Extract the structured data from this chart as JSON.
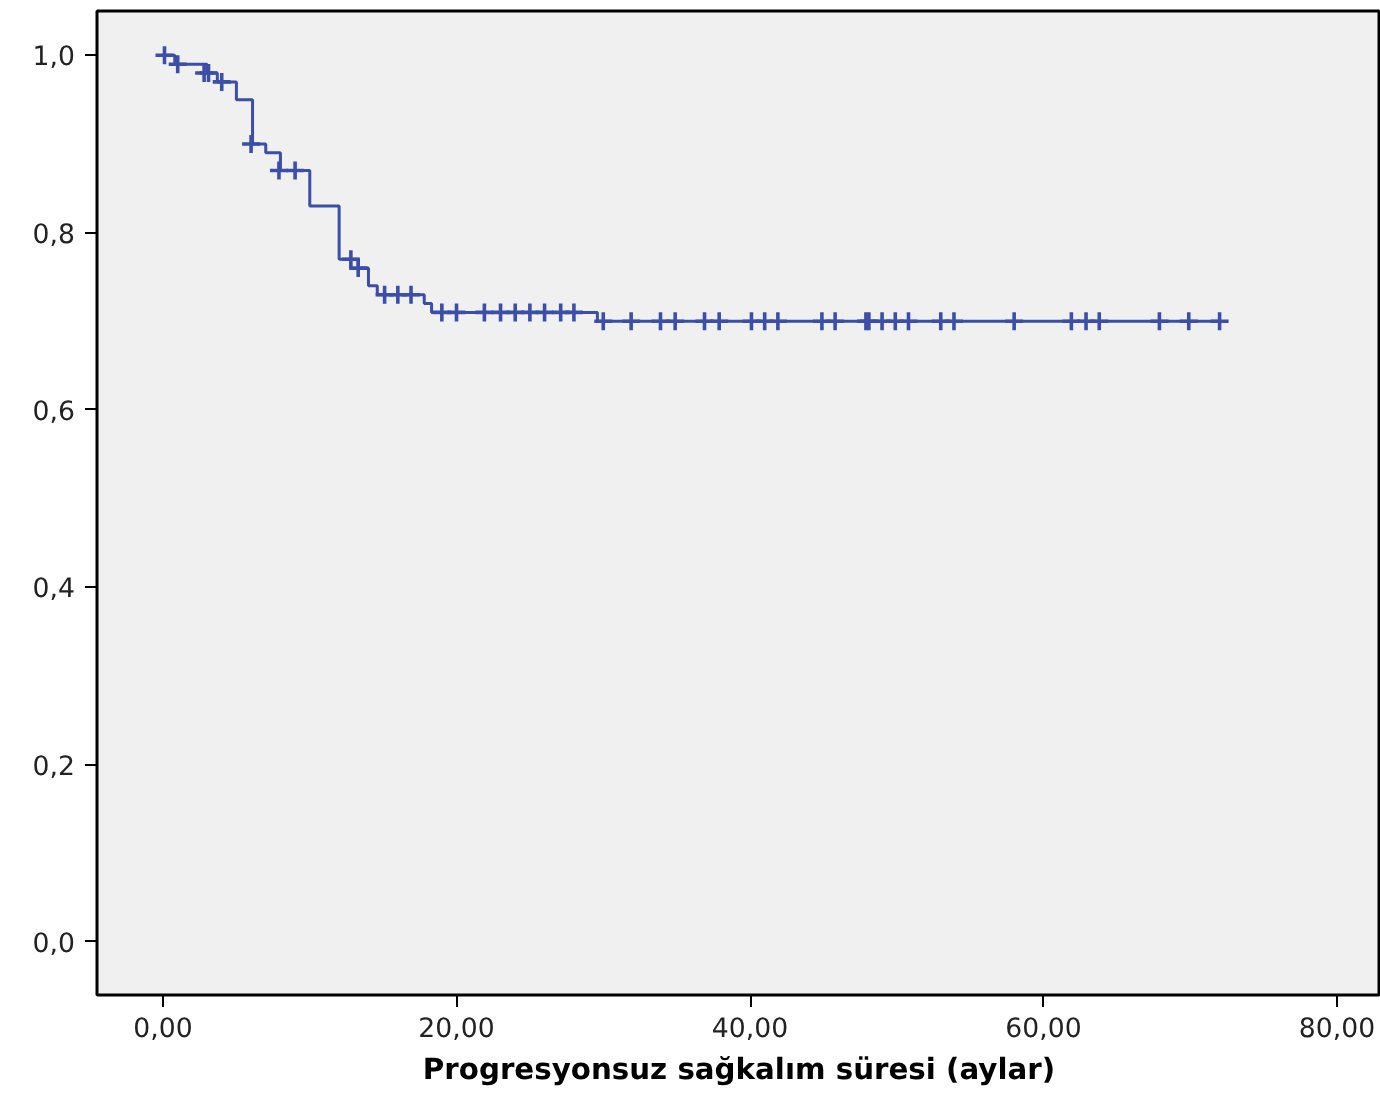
{
  "chart_data": {
    "type": "step",
    "xlabel": "Progresyonsuz sağkalım süresi (aylar)",
    "xlim": [
      -4.5,
      83
    ],
    "ylim": [
      -0.06,
      1.05
    ],
    "xticks": [
      {
        "value": 0,
        "label": "0,00"
      },
      {
        "value": 20,
        "label": "20,00"
      },
      {
        "value": 40,
        "label": "40,00"
      },
      {
        "value": 60,
        "label": "60,00"
      },
      {
        "value": 80,
        "label": "80,00"
      }
    ],
    "yticks": [
      {
        "value": 0,
        "label": "0,0"
      },
      {
        "value": 0.2,
        "label": "0,2"
      },
      {
        "value": 0.4,
        "label": "0,4"
      },
      {
        "value": 0.6,
        "label": "0,6"
      },
      {
        "value": 0.8,
        "label": "0,8"
      },
      {
        "value": 1.0,
        "label": "1,0"
      }
    ],
    "grid": false,
    "series": [
      {
        "color": "#3b4fa8",
        "x": [
          0,
          0.8,
          3.0,
          3.7,
          5,
          6.1,
          7,
          8,
          10,
          12,
          13.3,
          14,
          14.6,
          17.8,
          18.3,
          29.6,
          72
        ],
        "values": [
          1.0,
          0.99,
          0.98,
          0.97,
          0.95,
          0.9,
          0.89,
          0.87,
          0.83,
          0.77,
          0.76,
          0.74,
          0.73,
          0.72,
          0.71,
          0.7,
          0.7
        ]
      },
      {
        "type": "scatter",
        "marker": "cross",
        "color": "#3b4fa8",
        "x": [
          0.1,
          1.0,
          2.8,
          3.1,
          4.0,
          6.0,
          7.9,
          9.0,
          12.8,
          13.3,
          15.1,
          16.0,
          16.9,
          19.0,
          20.0,
          21.9,
          23.0,
          24.0,
          25.0,
          26.0,
          27.1,
          28.0,
          30.0,
          31.9,
          33.9,
          34.9,
          36.9,
          37.9,
          40.1,
          41.0,
          41.9,
          44.9,
          45.8,
          47.9,
          48.1,
          49.0,
          49.9,
          50.8,
          53.0,
          53.9,
          58.0,
          61.9,
          62.9,
          63.8,
          67.9,
          69.9,
          72.0
        ],
        "values": [
          1.0,
          0.99,
          0.98,
          0.98,
          0.97,
          0.9,
          0.87,
          0.87,
          0.77,
          0.76,
          0.73,
          0.73,
          0.73,
          0.71,
          0.71,
          0.71,
          0.71,
          0.71,
          0.71,
          0.71,
          0.71,
          0.71,
          0.7,
          0.7,
          0.7,
          0.7,
          0.7,
          0.7,
          0.7,
          0.7,
          0.7,
          0.7,
          0.7,
          0.7,
          0.7,
          0.7,
          0.7,
          0.7,
          0.7,
          0.7,
          0.7,
          0.7,
          0.7,
          0.7,
          0.7,
          0.7,
          0.7
        ]
      }
    ]
  }
}
